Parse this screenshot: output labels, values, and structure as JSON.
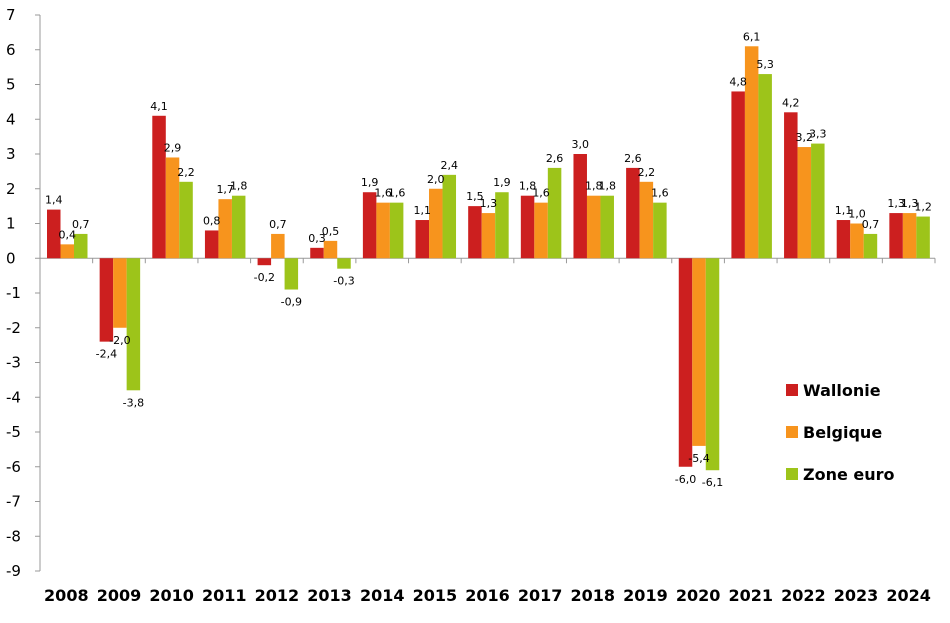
{
  "chart_data": {
    "type": "bar",
    "title": "",
    "xlabel": "",
    "ylabel": "",
    "ylim": [
      -9,
      7
    ],
    "yticks": [
      "7",
      "6",
      "5",
      "4",
      "3",
      "2",
      "1",
      "0",
      "-1",
      "-2",
      "-3",
      "-4",
      "-5",
      "-6",
      "-7",
      "-8",
      "-9"
    ],
    "categories": [
      "2008",
      "2009",
      "2010",
      "2011",
      "2012",
      "2013",
      "2014",
      "2015",
      "2016",
      "2017",
      "2018",
      "2019",
      "2020",
      "2021",
      "2022",
      "2023",
      "2024"
    ],
    "series": [
      {
        "name": "Wallonie",
        "color": "#cc1f1f",
        "values": [
          1.4,
          -2.4,
          4.1,
          0.8,
          -0.2,
          0.3,
          1.9,
          1.1,
          1.5,
          1.8,
          3.0,
          2.6,
          -6.0,
          4.8,
          4.2,
          1.1,
          1.3
        ],
        "labels": [
          "1,4",
          "-2,4",
          "4,1",
          "0,8",
          "-0,2",
          "0,3",
          "1,9",
          "1,1",
          "1,5",
          "1,8",
          "3,0",
          "2,6",
          "-6,0",
          "4,8",
          "4,2",
          "1,1",
          "1,3"
        ]
      },
      {
        "name": "Belgique",
        "color": "#f7941d",
        "values": [
          0.4,
          -2.0,
          2.9,
          1.7,
          0.7,
          0.5,
          1.6,
          2.0,
          1.3,
          1.6,
          1.8,
          2.2,
          -5.4,
          6.1,
          3.2,
          1.0,
          1.3
        ],
        "labels": [
          "0,4",
          "-2,0",
          "2,9",
          "1,7",
          "0,7",
          "0,5",
          "1,6",
          "2,0",
          "1,3",
          "1,6",
          "1,8",
          "2,2",
          "-5,4",
          "6,1",
          "3,2",
          "1,0",
          "1,3"
        ]
      },
      {
        "name": "Zone euro",
        "color": "#9dc41a",
        "values": [
          0.7,
          -3.8,
          2.2,
          1.8,
          -0.9,
          -0.3,
          1.6,
          2.4,
          1.9,
          2.6,
          1.8,
          1.6,
          -6.1,
          5.3,
          3.3,
          0.7,
          1.2
        ],
        "labels": [
          "0,7",
          "-3,8",
          "2,2",
          "1,8",
          "-0,9",
          "-0,3",
          "1,6",
          "2,4",
          "1,9",
          "2,6",
          "1,8",
          "1,6",
          "-6,1",
          "5,3",
          "3,3",
          "0,7",
          "1,2"
        ]
      }
    ],
    "legend_position": "right",
    "grid": false
  }
}
